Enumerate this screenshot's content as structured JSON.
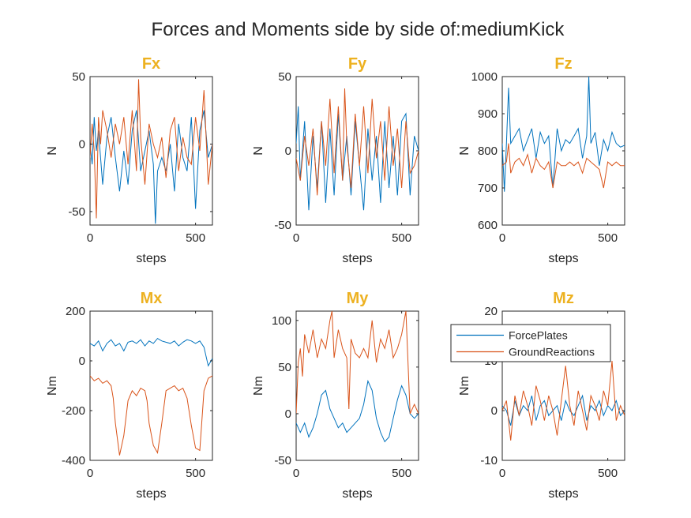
{
  "figure_title": "Forces and Moments side by side of:mediumKick",
  "title_color": "#EDB120",
  "colors": {
    "ForcePlates": "#0072BD",
    "GroundReactions": "#D95319"
  },
  "legend": {
    "entries": [
      "ForcePlates",
      "GroundReactions"
    ],
    "location": "inside-top-right of Mz"
  },
  "chart_data": [
    {
      "type": "line",
      "title": "Fx",
      "xlabel": "steps",
      "ylabel": "N",
      "xlim": [
        0,
        580
      ],
      "ylim": [
        -60,
        50
      ],
      "xticks": [
        0,
        500
      ],
      "yticks": [
        -50,
        0,
        50
      ],
      "series": [
        {
          "name": "ForcePlates",
          "x": [
            0,
            10,
            20,
            30,
            40,
            60,
            80,
            100,
            120,
            140,
            160,
            180,
            200,
            220,
            240,
            260,
            280,
            300,
            310,
            320,
            340,
            360,
            380,
            400,
            420,
            440,
            460,
            480,
            500,
            520,
            540,
            560,
            580
          ],
          "values": [
            0,
            -15,
            20,
            -5,
            10,
            -30,
            5,
            20,
            -10,
            -35,
            -5,
            -30,
            10,
            25,
            -20,
            -5,
            10,
            -15,
            -59,
            -20,
            -10,
            -20,
            0,
            -35,
            15,
            -10,
            -20,
            20,
            -48,
            10,
            25,
            -10,
            0
          ]
        },
        {
          "name": "GroundReactions",
          "x": [
            0,
            10,
            20,
            30,
            40,
            50,
            60,
            80,
            100,
            120,
            140,
            160,
            180,
            200,
            220,
            230,
            240,
            260,
            280,
            300,
            320,
            340,
            360,
            380,
            400,
            420,
            440,
            460,
            480,
            500,
            520,
            540,
            560,
            580
          ],
          "values": [
            -10,
            15,
            -5,
            -55,
            20,
            0,
            25,
            10,
            -10,
            15,
            0,
            20,
            -15,
            25,
            -20,
            48,
            5,
            -30,
            15,
            0,
            -10,
            5,
            -25,
            10,
            20,
            -20,
            5,
            -10,
            -15,
            20,
            -5,
            40,
            -30,
            0
          ]
        }
      ]
    },
    {
      "type": "line",
      "title": "Fy",
      "xlabel": "steps",
      "ylabel": "N",
      "xlim": [
        0,
        580
      ],
      "ylim": [
        -50,
        50
      ],
      "xticks": [
        0,
        500
      ],
      "yticks": [
        -50,
        0,
        50
      ],
      "series": [
        {
          "name": "ForcePlates",
          "x": [
            0,
            10,
            20,
            40,
            60,
            80,
            100,
            120,
            140,
            160,
            180,
            200,
            220,
            240,
            260,
            280,
            300,
            320,
            340,
            360,
            380,
            400,
            420,
            440,
            460,
            480,
            500,
            520,
            540,
            560,
            580
          ],
          "values": [
            5,
            30,
            -20,
            20,
            -40,
            10,
            -25,
            20,
            -35,
            15,
            -30,
            25,
            -20,
            10,
            -30,
            20,
            -10,
            -40,
            15,
            -20,
            10,
            -35,
            20,
            -25,
            10,
            -30,
            20,
            25,
            -30,
            10,
            0
          ]
        },
        {
          "name": "GroundReactions",
          "x": [
            0,
            20,
            40,
            60,
            80,
            100,
            120,
            140,
            160,
            180,
            200,
            220,
            230,
            240,
            260,
            280,
            300,
            320,
            340,
            360,
            380,
            400,
            420,
            440,
            460,
            480,
            500,
            520,
            540,
            560,
            580
          ],
          "values": [
            -5,
            -20,
            10,
            -10,
            15,
            -30,
            20,
            -10,
            35,
            -15,
            30,
            -20,
            42,
            5,
            -25,
            25,
            -10,
            30,
            -15,
            35,
            -5,
            20,
            -20,
            30,
            -10,
            15,
            -25,
            20,
            -15,
            -10,
            0
          ]
        }
      ]
    },
    {
      "type": "line",
      "title": "Fz",
      "xlabel": "steps",
      "ylabel": "N",
      "xlim": [
        0,
        580
      ],
      "ylim": [
        600,
        1000
      ],
      "xticks": [
        0,
        500
      ],
      "yticks": [
        600,
        700,
        800,
        900,
        1000
      ],
      "series": [
        {
          "name": "ForcePlates",
          "x": [
            0,
            10,
            20,
            30,
            40,
            60,
            80,
            100,
            120,
            140,
            160,
            180,
            200,
            220,
            240,
            260,
            280,
            300,
            320,
            340,
            360,
            380,
            400,
            410,
            420,
            440,
            460,
            480,
            500,
            520,
            540,
            560,
            580
          ],
          "values": [
            820,
            690,
            820,
            970,
            820,
            840,
            860,
            800,
            830,
            860,
            780,
            850,
            820,
            840,
            700,
            860,
            800,
            830,
            820,
            840,
            860,
            780,
            840,
            1000,
            820,
            850,
            760,
            830,
            800,
            850,
            820,
            810,
            815
          ]
        },
        {
          "name": "GroundReactions",
          "x": [
            0,
            20,
            30,
            40,
            60,
            80,
            100,
            120,
            140,
            160,
            180,
            200,
            220,
            240,
            260,
            280,
            300,
            320,
            340,
            360,
            380,
            400,
            420,
            440,
            460,
            480,
            500,
            520,
            540,
            560,
            580
          ],
          "values": [
            760,
            770,
            820,
            740,
            770,
            780,
            760,
            790,
            740,
            780,
            760,
            750,
            770,
            700,
            770,
            760,
            760,
            770,
            760,
            770,
            740,
            780,
            770,
            760,
            750,
            700,
            770,
            760,
            770,
            760,
            760
          ]
        }
      ]
    },
    {
      "type": "line",
      "title": "Mx",
      "xlabel": "steps",
      "ylabel": "Nm",
      "xlim": [
        0,
        580
      ],
      "ylim": [
        -400,
        200
      ],
      "xticks": [
        0,
        500
      ],
      "yticks": [
        -400,
        -200,
        0,
        200
      ],
      "series": [
        {
          "name": "ForcePlates",
          "x": [
            0,
            20,
            40,
            60,
            80,
            100,
            120,
            140,
            160,
            180,
            200,
            220,
            240,
            260,
            280,
            300,
            320,
            340,
            360,
            380,
            400,
            420,
            440,
            460,
            480,
            500,
            520,
            540,
            560,
            580
          ],
          "values": [
            70,
            60,
            80,
            40,
            70,
            85,
            60,
            70,
            40,
            75,
            80,
            70,
            85,
            60,
            80,
            70,
            90,
            80,
            75,
            70,
            80,
            60,
            75,
            85,
            80,
            70,
            80,
            55,
            -20,
            10
          ]
        },
        {
          "name": "GroundReactions",
          "x": [
            0,
            20,
            40,
            60,
            80,
            100,
            110,
            120,
            140,
            160,
            180,
            200,
            220,
            240,
            260,
            270,
            280,
            300,
            320,
            340,
            360,
            380,
            400,
            420,
            440,
            460,
            480,
            500,
            520,
            540,
            560,
            580
          ],
          "values": [
            -60,
            -80,
            -70,
            -90,
            -80,
            -100,
            -150,
            -250,
            -380,
            -300,
            -160,
            -120,
            -140,
            -110,
            -120,
            -160,
            -250,
            -340,
            -370,
            -250,
            -120,
            -110,
            -100,
            -120,
            -110,
            -150,
            -260,
            -350,
            -360,
            -120,
            -70,
            -60
          ]
        }
      ]
    },
    {
      "type": "line",
      "title": "My",
      "xlabel": "steps",
      "ylabel": "Nm",
      "xlim": [
        0,
        580
      ],
      "ylim": [
        -50,
        110
      ],
      "xticks": [
        0,
        500
      ],
      "yticks": [
        -50,
        0,
        50,
        100
      ],
      "series": [
        {
          "name": "ForcePlates",
          "x": [
            0,
            20,
            40,
            60,
            80,
            100,
            120,
            140,
            160,
            180,
            200,
            220,
            240,
            260,
            280,
            300,
            320,
            340,
            360,
            380,
            400,
            420,
            440,
            460,
            480,
            500,
            520,
            540,
            560,
            580
          ],
          "values": [
            -10,
            -20,
            -10,
            -25,
            -15,
            0,
            20,
            25,
            5,
            -5,
            -15,
            -10,
            -20,
            -15,
            -10,
            -5,
            10,
            35,
            25,
            -5,
            -20,
            -30,
            -25,
            -5,
            15,
            30,
            20,
            0,
            -5,
            0
          ]
        },
        {
          "name": "GroundReactions",
          "x": [
            0,
            10,
            20,
            30,
            40,
            60,
            80,
            100,
            120,
            140,
            160,
            170,
            180,
            200,
            220,
            240,
            250,
            260,
            280,
            300,
            320,
            340,
            360,
            380,
            400,
            420,
            440,
            460,
            480,
            500,
            520,
            540,
            560,
            580
          ],
          "values": [
            0,
            55,
            70,
            40,
            85,
            65,
            90,
            60,
            80,
            70,
            100,
            110,
            60,
            90,
            70,
            60,
            5,
            80,
            65,
            60,
            70,
            60,
            100,
            55,
            80,
            70,
            90,
            60,
            70,
            85,
            110,
            0,
            10,
            0
          ]
        }
      ]
    },
    {
      "type": "line",
      "title": "Mz",
      "xlabel": "steps",
      "ylabel": "Nm",
      "xlim": [
        0,
        580
      ],
      "ylim": [
        -10,
        20
      ],
      "xticks": [
        0,
        500
      ],
      "yticks": [
        -10,
        0,
        10,
        20
      ],
      "series": [
        {
          "name": "ForcePlates",
          "x": [
            0,
            20,
            40,
            60,
            80,
            100,
            120,
            140,
            160,
            180,
            200,
            220,
            240,
            260,
            280,
            300,
            320,
            340,
            360,
            380,
            400,
            420,
            440,
            460,
            480,
            500,
            520,
            540,
            560,
            580
          ],
          "values": [
            1,
            0,
            -3,
            2,
            -1,
            1,
            0,
            3,
            -2,
            1,
            2,
            -1,
            0,
            1,
            -2,
            2,
            0,
            -1,
            1,
            3,
            -2,
            1,
            0,
            2,
            -1,
            1,
            0,
            2,
            -1,
            0
          ]
        },
        {
          "name": "GroundReactions",
          "x": [
            0,
            20,
            40,
            60,
            80,
            100,
            120,
            140,
            160,
            180,
            200,
            220,
            240,
            260,
            280,
            300,
            320,
            340,
            360,
            380,
            400,
            420,
            440,
            460,
            480,
            500,
            520,
            540,
            560,
            580
          ],
          "values": [
            0,
            2,
            -6,
            3,
            -1,
            4,
            1,
            -3,
            5,
            2,
            -2,
            3,
            0,
            -5,
            2,
            9,
            1,
            -3,
            4,
            0,
            -4,
            3,
            1,
            -2,
            4,
            1,
            10,
            -2,
            1,
            -1
          ]
        }
      ]
    }
  ]
}
